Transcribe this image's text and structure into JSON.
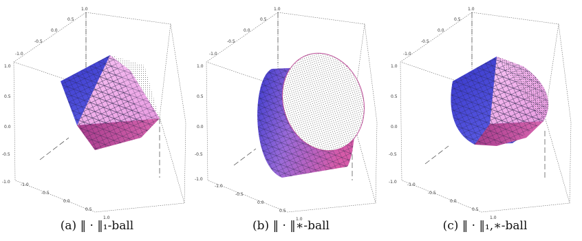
{
  "colors": {
    "face_blue": "#4c4cde",
    "face_pink": "#f0a8e8",
    "face_magenta": "#c04c9a",
    "mesh": "#222244",
    "box_line": "#555555"
  },
  "panels": [
    {
      "id": "a",
      "caption": "(a) ‖ · ‖₁-ball",
      "ticks": [
        "1.0",
        "0.5",
        "0.0",
        "-0.5",
        "-1.0",
        "1.0",
        "0.5",
        "0.0",
        "-0.5",
        "-1.0",
        "-1.0",
        "-0.5",
        "0.0",
        "0.5",
        "1.0"
      ]
    },
    {
      "id": "b",
      "caption": "(b) ‖ · ‖∗-ball",
      "ticks": [
        "1.0",
        "0.5",
        "0.0",
        "-0.5",
        "-1.0",
        "1.0",
        "0.5",
        "0.0",
        "-0.5",
        "-1.0",
        "-1.0",
        "-0.5",
        "0.0",
        "0.5",
        "1.0"
      ]
    },
    {
      "id": "c",
      "caption": "(c) ‖ · ‖₁,∗-ball",
      "ticks": [
        "1.0",
        "0.5",
        "0.0",
        "-0.5",
        "-1.0",
        "1.0",
        "0.5",
        "0.0",
        "-0.5",
        "-1.0",
        "-1.0",
        "-0.5",
        "0.0",
        "0.5",
        "1.0"
      ]
    }
  ]
}
